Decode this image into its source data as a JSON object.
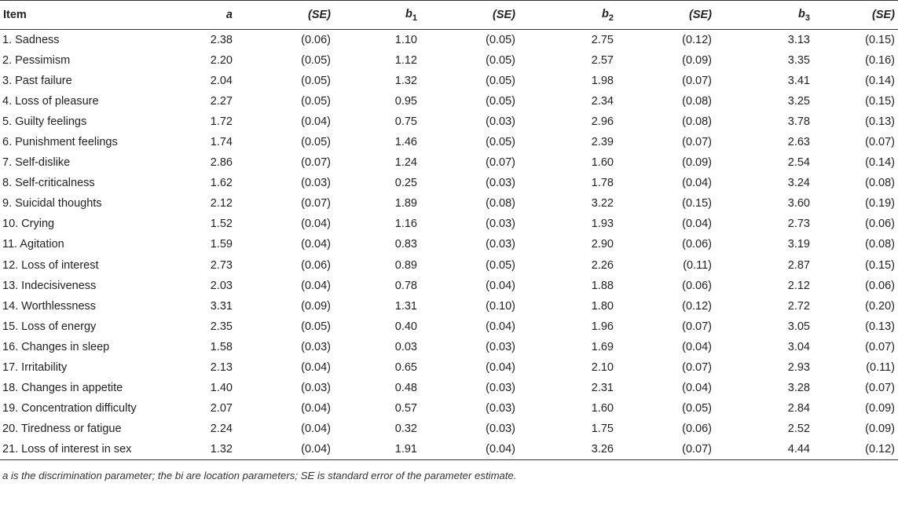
{
  "table": {
    "headers": {
      "item": "Item",
      "a": "a",
      "se": "(SE)",
      "b1_main": "b",
      "b1_sub": "1",
      "b2_main": "b",
      "b2_sub": "2",
      "b3_main": "b",
      "b3_sub": "3"
    },
    "rows": [
      {
        "item": "1. Sadness",
        "a": "2.38",
        "a_se": "(0.06)",
        "b1": "1.10",
        "b1_se": "(0.05)",
        "b2": "2.75",
        "b2_se": "(0.12)",
        "b3": "3.13",
        "b3_se": "(0.15)"
      },
      {
        "item": "2. Pessimism",
        "a": "2.20",
        "a_se": "(0.05)",
        "b1": "1.12",
        "b1_se": "(0.05)",
        "b2": "2.57",
        "b2_se": "(0.09)",
        "b3": "3.35",
        "b3_se": "(0.16)"
      },
      {
        "item": "3. Past failure",
        "a": "2.04",
        "a_se": "(0.05)",
        "b1": "1.32",
        "b1_se": "(0.05)",
        "b2": "1.98",
        "b2_se": "(0.07)",
        "b3": "3.41",
        "b3_se": "(0.14)"
      },
      {
        "item": "4. Loss of pleasure",
        "a": "2.27",
        "a_se": "(0.05)",
        "b1": "0.95",
        "b1_se": "(0.05)",
        "b2": "2.34",
        "b2_se": "(0.08)",
        "b3": "3.25",
        "b3_se": "(0.15)"
      },
      {
        "item": "5. Guilty feelings",
        "a": "1.72",
        "a_se": "(0.04)",
        "b1": "0.75",
        "b1_se": "(0.03)",
        "b2": "2.96",
        "b2_se": "(0.08)",
        "b3": "3.78",
        "b3_se": "(0.13)"
      },
      {
        "item": "6. Punishment feelings",
        "a": "1.74",
        "a_se": "(0.05)",
        "b1": "1.46",
        "b1_se": "(0.05)",
        "b2": "2.39",
        "b2_se": "(0.07)",
        "b3": "2.63",
        "b3_se": "(0.07)"
      },
      {
        "item": "7. Self-dislike",
        "a": "2.86",
        "a_se": "(0.07)",
        "b1": "1.24",
        "b1_se": "(0.07)",
        "b2": "1.60",
        "b2_se": "(0.09)",
        "b3": "2.54",
        "b3_se": "(0.14)"
      },
      {
        "item": "8. Self-criticalness",
        "a": "1.62",
        "a_se": "(0.03)",
        "b1": "0.25",
        "b1_se": "(0.03)",
        "b2": "1.78",
        "b2_se": "(0.04)",
        "b3": "3.24",
        "b3_se": "(0.08)"
      },
      {
        "item": "9. Suicidal thoughts",
        "a": "2.12",
        "a_se": "(0.07)",
        "b1": "1.89",
        "b1_se": "(0.08)",
        "b2": "3.22",
        "b2_se": "(0.15)",
        "b3": "3.60",
        "b3_se": "(0.19)"
      },
      {
        "item": "10. Crying",
        "a": "1.52",
        "a_se": "(0.04)",
        "b1": "1.16",
        "b1_se": "(0.03)",
        "b2": "1.93",
        "b2_se": "(0.04)",
        "b3": "2.73",
        "b3_se": "(0.06)"
      },
      {
        "item": "11. Agitation",
        "a": "1.59",
        "a_se": "(0.04)",
        "b1": "0.83",
        "b1_se": "(0.03)",
        "b2": "2.90",
        "b2_se": "(0.06)",
        "b3": "3.19",
        "b3_se": "(0.08)"
      },
      {
        "item": "12. Loss of interest",
        "a": "2.73",
        "a_se": "(0.06)",
        "b1": "0.89",
        "b1_se": "(0.05)",
        "b2": "2.26",
        "b2_se": "(0.11)",
        "b3": "2.87",
        "b3_se": "(0.15)"
      },
      {
        "item": "13. Indecisiveness",
        "a": "2.03",
        "a_se": "(0.04)",
        "b1": "0.78",
        "b1_se": "(0.04)",
        "b2": "1.88",
        "b2_se": "(0.06)",
        "b3": "2.12",
        "b3_se": "(0.06)"
      },
      {
        "item": "14. Worthlessness",
        "a": "3.31",
        "a_se": "(0.09)",
        "b1": "1.31",
        "b1_se": "(0.10)",
        "b2": "1.80",
        "b2_se": "(0.12)",
        "b3": "2.72",
        "b3_se": "(0.20)"
      },
      {
        "item": "15. Loss of energy",
        "a": "2.35",
        "a_se": "(0.05)",
        "b1": "0.40",
        "b1_se": "(0.04)",
        "b2": "1.96",
        "b2_se": "(0.07)",
        "b3": "3.05",
        "b3_se": "(0.13)"
      },
      {
        "item": "16. Changes in sleep",
        "a": "1.58",
        "a_se": "(0.03)",
        "b1": "0.03",
        "b1_se": "(0.03)",
        "b2": "1.69",
        "b2_se": "(0.04)",
        "b3": "3.04",
        "b3_se": "(0.07)"
      },
      {
        "item": "17. Irritability",
        "a": "2.13",
        "a_se": "(0.04)",
        "b1": "0.65",
        "b1_se": "(0.04)",
        "b2": "2.10",
        "b2_se": "(0.07)",
        "b3": "2.93",
        "b3_se": "(0.11)"
      },
      {
        "item": "18. Changes in appetite",
        "a": "1.40",
        "a_se": "(0.03)",
        "b1": "0.48",
        "b1_se": "(0.03)",
        "b2": "2.31",
        "b2_se": "(0.04)",
        "b3": "3.28",
        "b3_se": "(0.07)"
      },
      {
        "item": "19. Concentration difficulty",
        "a": "2.07",
        "a_se": "(0.04)",
        "b1": "0.57",
        "b1_se": "(0.03)",
        "b2": "1.60",
        "b2_se": "(0.05)",
        "b3": "2.84",
        "b3_se": "(0.09)"
      },
      {
        "item": "20. Tiredness or fatigue",
        "a": "2.24",
        "a_se": "(0.04)",
        "b1": "0.32",
        "b1_se": "(0.03)",
        "b2": "1.75",
        "b2_se": "(0.06)",
        "b3": "2.52",
        "b3_se": "(0.09)"
      },
      {
        "item": "21. Loss of interest in sex",
        "a": "1.32",
        "a_se": "(0.04)",
        "b1": "1.91",
        "b1_se": "(0.04)",
        "b2": "3.26",
        "b2_se": "(0.07)",
        "b3": "4.44",
        "b3_se": "(0.12)"
      }
    ],
    "footnote": "a is the discrimination parameter; the bi are location parameters; SE is standard error of the parameter estimate."
  }
}
